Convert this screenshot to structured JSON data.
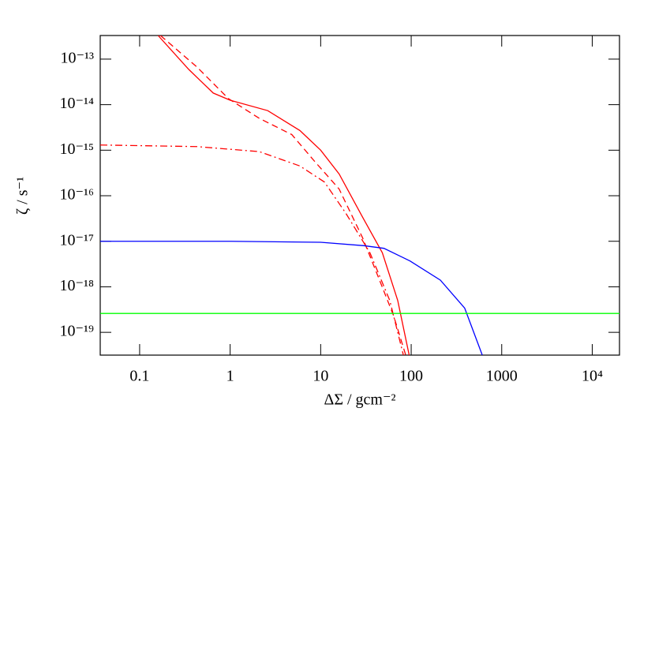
{
  "chart_data": {
    "type": "line",
    "x_label": "ΔΣ / gcm⁻²",
    "y_label": "ζ / s⁻¹",
    "xscale": "log",
    "yscale": "log",
    "xlim": [
      0.0367,
      20000
    ],
    "ylim": [
      3.16e-20,
      3.3e-13
    ],
    "xticks": [
      0.1,
      1,
      10,
      100,
      1000,
      {
        "value": 10000,
        "label": "10⁴"
      }
    ],
    "yticks": [
      {
        "value": 1e-13,
        "label": "10⁻¹³"
      },
      {
        "value": 1e-14,
        "label": "10⁻¹⁴"
      },
      {
        "value": 1e-15,
        "label": "10⁻¹⁵"
      },
      {
        "value": 1e-16,
        "label": "10⁻¹⁶"
      },
      {
        "value": 1e-17,
        "label": "10⁻¹⁷"
      },
      {
        "value": 1e-18,
        "label": "10⁻¹⁸"
      },
      {
        "value": 1e-19,
        "label": "10⁻¹⁹"
      }
    ],
    "series": [
      {
        "color": "#ff0000",
        "dash": "solid",
        "x": [
          0.16,
          0.35,
          0.65,
          1,
          2.6,
          5.9,
          10,
          16,
          29,
          48,
          71,
          95
        ],
        "values": [
          3.3e-13,
          5.9e-14,
          1.8e-14,
          1.25e-14,
          7.4e-15,
          2.7e-15,
          1e-15,
          3e-16,
          3.4e-17,
          5.6e-18,
          5e-19,
          3.16e-20
        ]
      },
      {
        "color": "#ff0000",
        "dash": "dashed",
        "x": [
          0.17,
          0.43,
          0.96,
          2.1,
          4.8,
          8.7,
          16,
          29,
          43,
          64,
          87
        ],
        "values": [
          3.3e-13,
          6.7e-14,
          1.35e-14,
          5e-15,
          2.2e-15,
          5.5e-16,
          1.4e-16,
          1.2e-17,
          1.7e-18,
          2.3e-19,
          3.16e-20
        ]
      },
      {
        "color": "#ff0000",
        "dash": "dashdot",
        "x": [
          0.0367,
          0.43,
          2.1,
          5.9,
          11,
          19,
          35,
          58,
          82
        ],
        "values": [
          1.3e-15,
          1.2e-15,
          9.3e-16,
          4.5e-16,
          2e-16,
          4.1e-17,
          5.6e-18,
          5e-19,
          3.16e-20
        ]
      },
      {
        "color": "#0000ff",
        "dash": "solid",
        "x": [
          0.0367,
          1,
          10,
          30,
          50,
          97,
          210,
          390,
          610
        ],
        "values": [
          1e-17,
          1e-17,
          9.5e-18,
          8e-18,
          7e-18,
          3.7e-18,
          1.4e-18,
          3.4e-19,
          3.16e-20
        ]
      },
      {
        "color": "#00ff00",
        "dash": "solid",
        "x": [
          0.0367,
          20000
        ],
        "values": [
          2.6e-19,
          2.6e-19
        ]
      }
    ]
  }
}
